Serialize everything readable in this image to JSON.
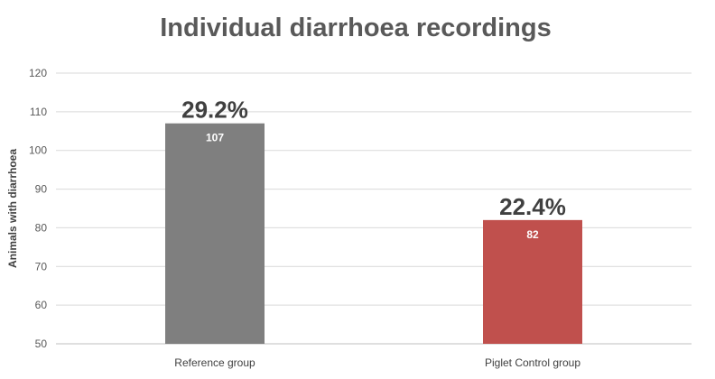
{
  "chart_data": {
    "type": "bar",
    "title": "Individual diarrhoea recordings",
    "ylabel": "Animals with diarrhoea",
    "xlabel": "",
    "ylim": [
      50,
      120
    ],
    "yticks": [
      50,
      60,
      70,
      80,
      90,
      100,
      110,
      120
    ],
    "grid": true,
    "categories": [
      "Reference group",
      "Piglet Control group"
    ],
    "values": [
      107,
      82
    ],
    "data_labels": [
      "107",
      "82"
    ],
    "percent_labels": [
      "29.2%",
      "22.4%"
    ],
    "colors": [
      "#7f7f7f",
      "#c0504d"
    ]
  }
}
